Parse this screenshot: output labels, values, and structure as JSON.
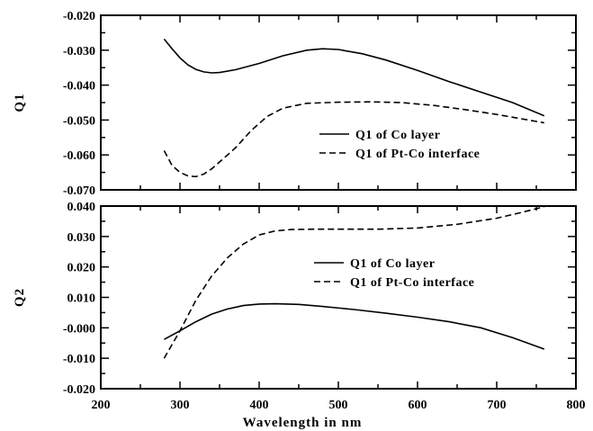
{
  "chart_data": [
    {
      "type": "line",
      "ylabel": "Q1",
      "xlabel": "",
      "xlim": [
        200,
        800
      ],
      "ylim": [
        -0.07,
        -0.02
      ],
      "yticks": [
        "-0.070",
        "-0.060",
        "-0.050",
        "-0.040",
        "-0.030",
        "-0.020"
      ],
      "xticks": [],
      "legend": "center-right",
      "series": [
        {
          "name": "Q1 of Co layer",
          "style": "solid",
          "x": [
            280,
            290,
            300,
            310,
            320,
            330,
            340,
            350,
            370,
            400,
            430,
            460,
            480,
            500,
            530,
            560,
            600,
            640,
            680,
            720,
            760
          ],
          "y": [
            -0.0268,
            -0.0296,
            -0.0322,
            -0.0342,
            -0.0355,
            -0.0362,
            -0.0365,
            -0.0364,
            -0.0356,
            -0.0338,
            -0.0316,
            -0.03,
            -0.0296,
            -0.0298,
            -0.031,
            -0.0328,
            -0.0358,
            -0.039,
            -0.042,
            -0.045,
            -0.0488
          ]
        },
        {
          "name": "Q1 of Pt-Co interface",
          "style": "dashed",
          "x": [
            280,
            290,
            300,
            310,
            320,
            330,
            340,
            350,
            370,
            390,
            410,
            430,
            460,
            500,
            540,
            580,
            620,
            660,
            700,
            740,
            760
          ],
          "y": [
            -0.0588,
            -0.063,
            -0.065,
            -0.066,
            -0.0662,
            -0.0655,
            -0.064,
            -0.062,
            -0.058,
            -0.053,
            -0.049,
            -0.0466,
            -0.0452,
            -0.0449,
            -0.0448,
            -0.045,
            -0.0458,
            -0.047,
            -0.0484,
            -0.05,
            -0.0508
          ]
        }
      ]
    },
    {
      "type": "line",
      "ylabel": "Q2",
      "xlabel": "Wavelength in nm",
      "xlim": [
        200,
        800
      ],
      "ylim": [
        -0.02,
        0.04
      ],
      "yticks": [
        "-0.020",
        "-0.010",
        "-0.000",
        "0.010",
        "0.020",
        "0.030",
        "0.040"
      ],
      "xticks": [
        "200",
        "300",
        "400",
        "500",
        "600",
        "700",
        "800"
      ],
      "legend": "center-right",
      "series": [
        {
          "name": "Q1 of Co layer",
          "style": "solid",
          "x": [
            280,
            300,
            320,
            340,
            360,
            380,
            400,
            420,
            450,
            480,
            520,
            560,
            600,
            640,
            680,
            720,
            760
          ],
          "y": [
            -0.0038,
            -0.001,
            0.002,
            0.0045,
            0.0062,
            0.0073,
            0.0078,
            0.0079,
            0.0077,
            0.007,
            0.006,
            0.0048,
            0.0035,
            0.002,
            0.0,
            -0.0032,
            -0.007
          ]
        },
        {
          "name": "Q1 of Pt-Co interface",
          "style": "dashed",
          "x": [
            280,
            290,
            300,
            320,
            340,
            360,
            380,
            400,
            420,
            440,
            470,
            500,
            550,
            600,
            650,
            700,
            730,
            760
          ],
          "y": [
            -0.01,
            -0.0055,
            -0.001,
            0.009,
            0.017,
            0.023,
            0.0275,
            0.0305,
            0.0318,
            0.0323,
            0.0324,
            0.0324,
            0.0324,
            0.0328,
            0.034,
            0.036,
            0.0378,
            0.0398
          ]
        }
      ]
    }
  ]
}
